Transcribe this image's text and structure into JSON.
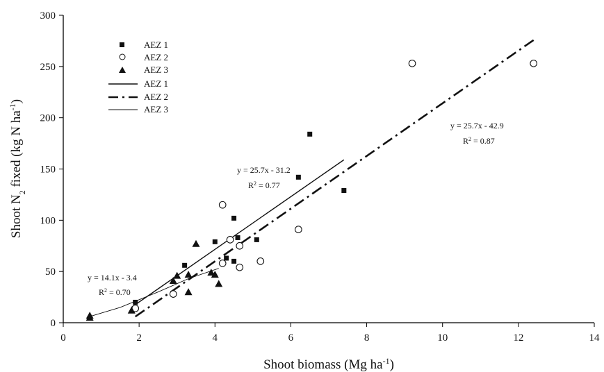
{
  "chart_data": {
    "type": "scatter",
    "xlabel": "Shoot biomass (Mg ha",
    "xlabel_sup": "-1",
    "xlabel_end": ")",
    "ylabel": "Shoot N",
    "ylabel_sub": "2",
    "ylabel_mid": " fixed (kg N ha",
    "ylabel_sup": "-1",
    "ylabel_end": ")",
    "xlim": [
      0,
      14
    ],
    "ylim": [
      0,
      300
    ],
    "xticks": [
      0,
      2,
      4,
      6,
      8,
      10,
      12,
      14
    ],
    "yticks": [
      0,
      50,
      100,
      150,
      200,
      250,
      300
    ],
    "grid": false,
    "legend_position": "top-left",
    "series": [
      {
        "name": "AEZ 1",
        "marker": "square-filled",
        "points": [
          [
            1.9,
            20
          ],
          [
            3.2,
            56
          ],
          [
            4.0,
            79
          ],
          [
            4.3,
            63
          ],
          [
            4.5,
            102
          ],
          [
            4.6,
            83
          ],
          [
            4.5,
            60
          ],
          [
            5.1,
            81
          ],
          [
            6.2,
            142
          ],
          [
            6.5,
            184
          ],
          [
            7.4,
            129
          ]
        ]
      },
      {
        "name": "AEZ 2",
        "marker": "circle-open",
        "points": [
          [
            1.9,
            14
          ],
          [
            2.9,
            28
          ],
          [
            4.2,
            58
          ],
          [
            4.2,
            115
          ],
          [
            4.4,
            81
          ],
          [
            4.65,
            75
          ],
          [
            4.65,
            54
          ],
          [
            5.2,
            60
          ],
          [
            6.2,
            91
          ],
          [
            9.2,
            253
          ],
          [
            12.4,
            253
          ]
        ]
      },
      {
        "name": "AEZ 3",
        "marker": "triangle-filled",
        "points": [
          [
            0.7,
            7
          ],
          [
            0.7,
            5
          ],
          [
            1.8,
            12
          ],
          [
            2.9,
            41
          ],
          [
            3.0,
            46
          ],
          [
            3.3,
            47
          ],
          [
            3.3,
            30
          ],
          [
            3.5,
            77
          ],
          [
            3.9,
            49
          ],
          [
            4.0,
            47
          ],
          [
            4.1,
            38
          ]
        ]
      }
    ],
    "fits": [
      {
        "name": "AEZ 1",
        "style": "solid",
        "slope": 25.7,
        "intercept": -31.2,
        "x_range": [
          1.8,
          7.4
        ]
      },
      {
        "name": "AEZ 2",
        "style": "dash-dot",
        "slope": 25.7,
        "intercept": -42.9,
        "x_range": [
          1.9,
          12.4
        ]
      },
      {
        "name": "AEZ 3",
        "style": "thin-solid",
        "x_range": [
          0.7,
          4.1
        ],
        "curve": [
          [
            0.7,
            6
          ],
          [
            1.5,
            15
          ],
          [
            2.5,
            30
          ],
          [
            3.3,
            43
          ],
          [
            4.1,
            53
          ]
        ]
      }
    ],
    "annotations": [
      {
        "equation": "y = 25.7x - 31.2",
        "r2_label": "R",
        "r2_sup": "2",
        "r2_value": " = 0.77"
      },
      {
        "equation": "y = 25.7x - 42.9",
        "r2_label": "R",
        "r2_sup": "2",
        "r2_value": " = 0.87"
      },
      {
        "equation": "y = 14.1x - 3.4",
        "r2_label": "R",
        "r2_sup": "2",
        "r2_value": " = 0.70"
      }
    ]
  }
}
